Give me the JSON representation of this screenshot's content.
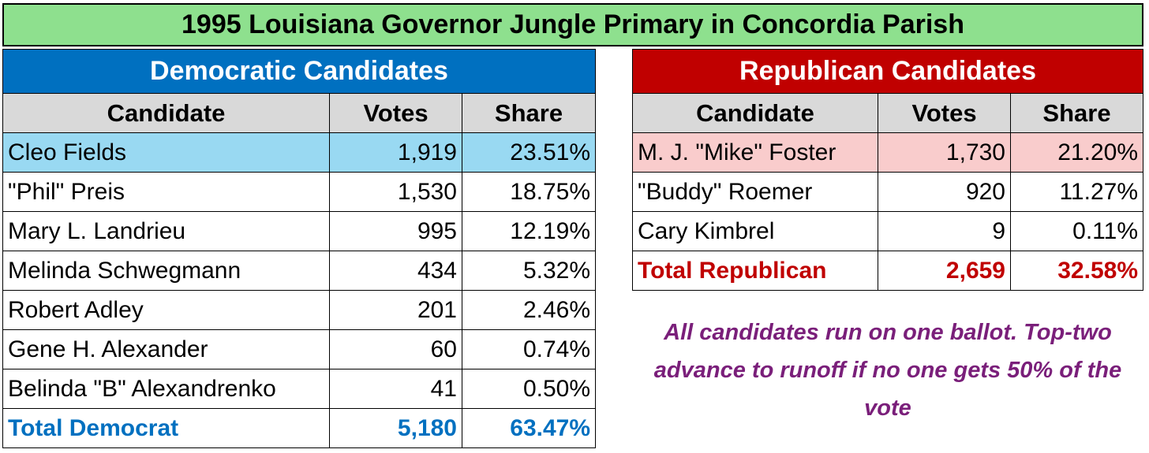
{
  "title": "1995 Louisiana Governor Jungle Primary in Concordia Parish",
  "democratic": {
    "heading": "Democratic Candidates",
    "columns": [
      "Candidate",
      "Votes",
      "Share"
    ],
    "rows": [
      {
        "candidate": "Cleo Fields",
        "votes": "1,919",
        "share": "23.51%"
      },
      {
        "candidate": "\"Phil\" Preis",
        "votes": "1,530",
        "share": "18.75%"
      },
      {
        "candidate": "Mary L. Landrieu",
        "votes": "995",
        "share": "12.19%"
      },
      {
        "candidate": "Melinda Schwegmann",
        "votes": "434",
        "share": "5.32%"
      },
      {
        "candidate": "Robert Adley",
        "votes": "201",
        "share": "2.46%"
      },
      {
        "candidate": "Gene H. Alexander",
        "votes": "60",
        "share": "0.74%"
      },
      {
        "candidate": "Belinda \"B\" Alexandrenko",
        "votes": "41",
        "share": "0.50%"
      }
    ],
    "total": {
      "label": "Total Democrat",
      "votes": "5,180",
      "share": "63.47%"
    }
  },
  "republican": {
    "heading": "Republican Candidates",
    "columns": [
      "Candidate",
      "Votes",
      "Share"
    ],
    "rows": [
      {
        "candidate": "M. J. \"Mike\" Foster",
        "votes": "1,730",
        "share": "21.20%"
      },
      {
        "candidate": "\"Buddy\" Roemer",
        "votes": "920",
        "share": "11.27%"
      },
      {
        "candidate": "Cary Kimbrel",
        "votes": "9",
        "share": "0.11%"
      }
    ],
    "total": {
      "label": "Total Republican",
      "votes": "2,659",
      "share": "32.58%"
    }
  },
  "note": "All candidates run on one ballot.  Top-two advance to runoff if no one gets 50% of the vote",
  "colors": {
    "title_bg": "#8ee08e",
    "dem_header": "#0070c0",
    "dem_highlight": "#99d9f2",
    "rep_header": "#c00000",
    "rep_highlight": "#f9cccc",
    "note": "#7a1f7a"
  }
}
